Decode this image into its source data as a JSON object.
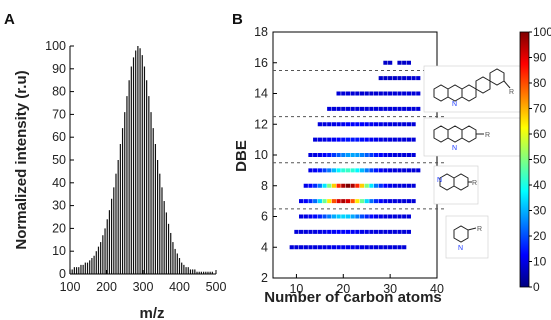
{
  "chart_data": [
    {
      "panel": "A",
      "type": "bar",
      "xlabel": "m/z",
      "ylabel": "Normalized intensity (r.u)",
      "xlim": [
        100,
        500
      ],
      "ylim": [
        0,
        100
      ],
      "xticks": [
        "100",
        "200",
        "300",
        "400",
        "500"
      ],
      "yticks": [
        "0",
        "10",
        "20",
        "30",
        "40",
        "50",
        "60",
        "70",
        "80",
        "90",
        "100"
      ],
      "peaks": {
        "mz": [
          100,
          106,
          112,
          118,
          124,
          130,
          136,
          142,
          148,
          154,
          160,
          166,
          172,
          178,
          184,
          190,
          196,
          202,
          208,
          214,
          220,
          226,
          232,
          238,
          244,
          250,
          256,
          262,
          268,
          274,
          280,
          286,
          292,
          298,
          304,
          310,
          316,
          322,
          328,
          334,
          340,
          346,
          352,
          358,
          364,
          370,
          376,
          382,
          388,
          394,
          400,
          406,
          412,
          418,
          424,
          430,
          436,
          442,
          448,
          454,
          460,
          466,
          472,
          478,
          484,
          490
        ],
        "intensity": [
          2,
          2,
          3,
          3,
          3,
          4,
          4,
          5,
          5,
          6,
          7,
          8,
          10,
          12,
          14,
          17,
          20,
          24,
          28,
          33,
          38,
          44,
          50,
          57,
          64,
          71,
          78,
          85,
          91,
          95,
          98,
          100,
          99,
          96,
          91,
          85,
          78,
          71,
          64,
          57,
          50,
          44,
          38,
          32,
          27,
          22,
          18,
          14,
          11,
          9,
          7,
          5,
          4,
          3,
          3,
          2,
          2,
          2,
          1,
          1,
          1,
          1,
          1,
          1,
          1,
          1
        ]
      }
    },
    {
      "panel": "B",
      "type": "heatmap",
      "xlabel": "Number of carbon atoms",
      "ylabel": "DBE",
      "xlim": [
        5,
        40
      ],
      "ylim": [
        2,
        18
      ],
      "xticks": [
        "10",
        "20",
        "30",
        "40"
      ],
      "yticks": [
        "2",
        "4",
        "6",
        "8",
        "10",
        "12",
        "14",
        "16",
        "18"
      ],
      "colorbar": {
        "min": 0,
        "max": 100,
        "ticks": [
          "0",
          "10",
          "20",
          "30",
          "40",
          "50",
          "60",
          "70",
          "80",
          "90",
          "100"
        ],
        "colormap": "jet"
      },
      "separators_dbe": [
        6.5,
        9.5,
        12.5,
        15.5
      ],
      "rows": [
        {
          "dbe": 4,
          "c_min": 9,
          "c_max": 33,
          "peak_c": 20,
          "peak": 6
        },
        {
          "dbe": 5,
          "c_min": 10,
          "c_max": 34,
          "peak_c": 20,
          "peak": 8
        },
        {
          "dbe": 6,
          "c_min": 11,
          "c_max": 34,
          "peak_c": 20,
          "peak": 30
        },
        {
          "dbe": 7,
          "c_min": 11,
          "c_max": 35,
          "peak_c": 20,
          "peak": 95
        },
        {
          "dbe": 8,
          "c_min": 12,
          "c_max": 35,
          "peak_c": 21,
          "peak": 100
        },
        {
          "dbe": 9,
          "c_min": 13,
          "c_max": 36,
          "peak_c": 21,
          "peak": 40
        },
        {
          "dbe": 10,
          "c_min": 13,
          "c_max": 35,
          "peak_c": 22,
          "peak": 25
        },
        {
          "dbe": 11,
          "c_min": 14,
          "c_max": 35,
          "peak_c": 22,
          "peak": 10
        },
        {
          "dbe": 12,
          "c_min": 15,
          "c_max": 35,
          "peak_c": 23,
          "peak": 8
        },
        {
          "dbe": 13,
          "c_min": 17,
          "c_max": 36,
          "peak_c": 24,
          "peak": 4
        },
        {
          "dbe": 14,
          "c_min": 19,
          "c_max": 36,
          "peak_c": 26,
          "peak": 3
        },
        {
          "dbe": 15,
          "c_min": 28,
          "c_max": 36,
          "peak_c": 30,
          "peak": 2
        },
        {
          "dbe": 16,
          "c_min": 29,
          "c_max": 34,
          "peak_c": 31,
          "peak": 2
        }
      ],
      "row_gaps": [
        {
          "dbe": 16,
          "c": 31
        }
      ],
      "structure_labels": {
        "pyridine_n": "N",
        "quinoline_n": "N",
        "acridine_n": "N",
        "benzacridine_n": "N",
        "substituent": "R"
      }
    }
  ],
  "panel_labels": {
    "a": "A",
    "b": "B"
  }
}
